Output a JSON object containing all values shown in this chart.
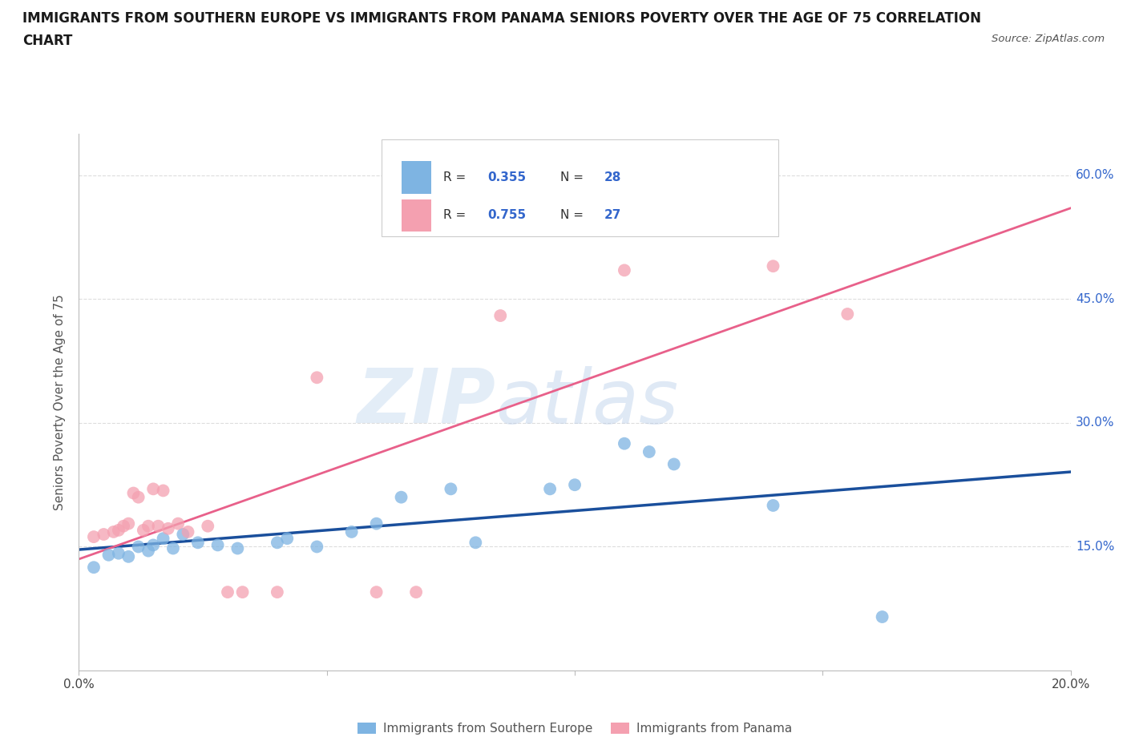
{
  "title_line1": "IMMIGRANTS FROM SOUTHERN EUROPE VS IMMIGRANTS FROM PANAMA SENIORS POVERTY OVER THE AGE OF 75 CORRELATION",
  "title_line2": "CHART",
  "source": "Source: ZipAtlas.com",
  "ylabel": "Seniors Poverty Over the Age of 75",
  "xlim": [
    0.0,
    0.2
  ],
  "ylim": [
    0.0,
    0.65
  ],
  "ytick_positions": [
    0.15,
    0.3,
    0.45,
    0.6
  ],
  "ytick_labels": [
    "15.0%",
    "30.0%",
    "45.0%",
    "60.0%"
  ],
  "watermark_zip": "ZIP",
  "watermark_atlas": "atlas",
  "blue_color": "#7EB4E2",
  "pink_color": "#F4A0B0",
  "blue_line_color": "#1A4F9C",
  "pink_line_color": "#E8608A",
  "R_blue": 0.355,
  "N_blue": 28,
  "R_pink": 0.755,
  "N_pink": 27,
  "blue_scatter_x": [
    0.003,
    0.006,
    0.008,
    0.01,
    0.012,
    0.014,
    0.015,
    0.017,
    0.019,
    0.021,
    0.024,
    0.028,
    0.032,
    0.04,
    0.042,
    0.048,
    0.055,
    0.06,
    0.065,
    0.075,
    0.08,
    0.095,
    0.1,
    0.11,
    0.115,
    0.12,
    0.14,
    0.162
  ],
  "blue_scatter_y": [
    0.125,
    0.14,
    0.142,
    0.138,
    0.15,
    0.145,
    0.152,
    0.16,
    0.148,
    0.165,
    0.155,
    0.152,
    0.148,
    0.155,
    0.16,
    0.15,
    0.168,
    0.178,
    0.21,
    0.22,
    0.155,
    0.22,
    0.225,
    0.275,
    0.265,
    0.25,
    0.2,
    0.065
  ],
  "pink_scatter_x": [
    0.003,
    0.005,
    0.007,
    0.008,
    0.009,
    0.01,
    0.011,
    0.012,
    0.013,
    0.014,
    0.015,
    0.016,
    0.017,
    0.018,
    0.02,
    0.022,
    0.026,
    0.03,
    0.033,
    0.04,
    0.048,
    0.06,
    0.068,
    0.085,
    0.11,
    0.14,
    0.155
  ],
  "pink_scatter_y": [
    0.162,
    0.165,
    0.168,
    0.17,
    0.175,
    0.178,
    0.215,
    0.21,
    0.17,
    0.175,
    0.22,
    0.175,
    0.218,
    0.172,
    0.178,
    0.168,
    0.175,
    0.095,
    0.095,
    0.095,
    0.355,
    0.095,
    0.095,
    0.43,
    0.485,
    0.49,
    0.432
  ],
  "grid_color": "#DDDDDD",
  "background_color": "#FFFFFF",
  "text_color": "#555555",
  "label_blue_color": "#3366CC",
  "legend_label1": "Immigrants from Southern Europe",
  "legend_label2": "Immigrants from Panama"
}
